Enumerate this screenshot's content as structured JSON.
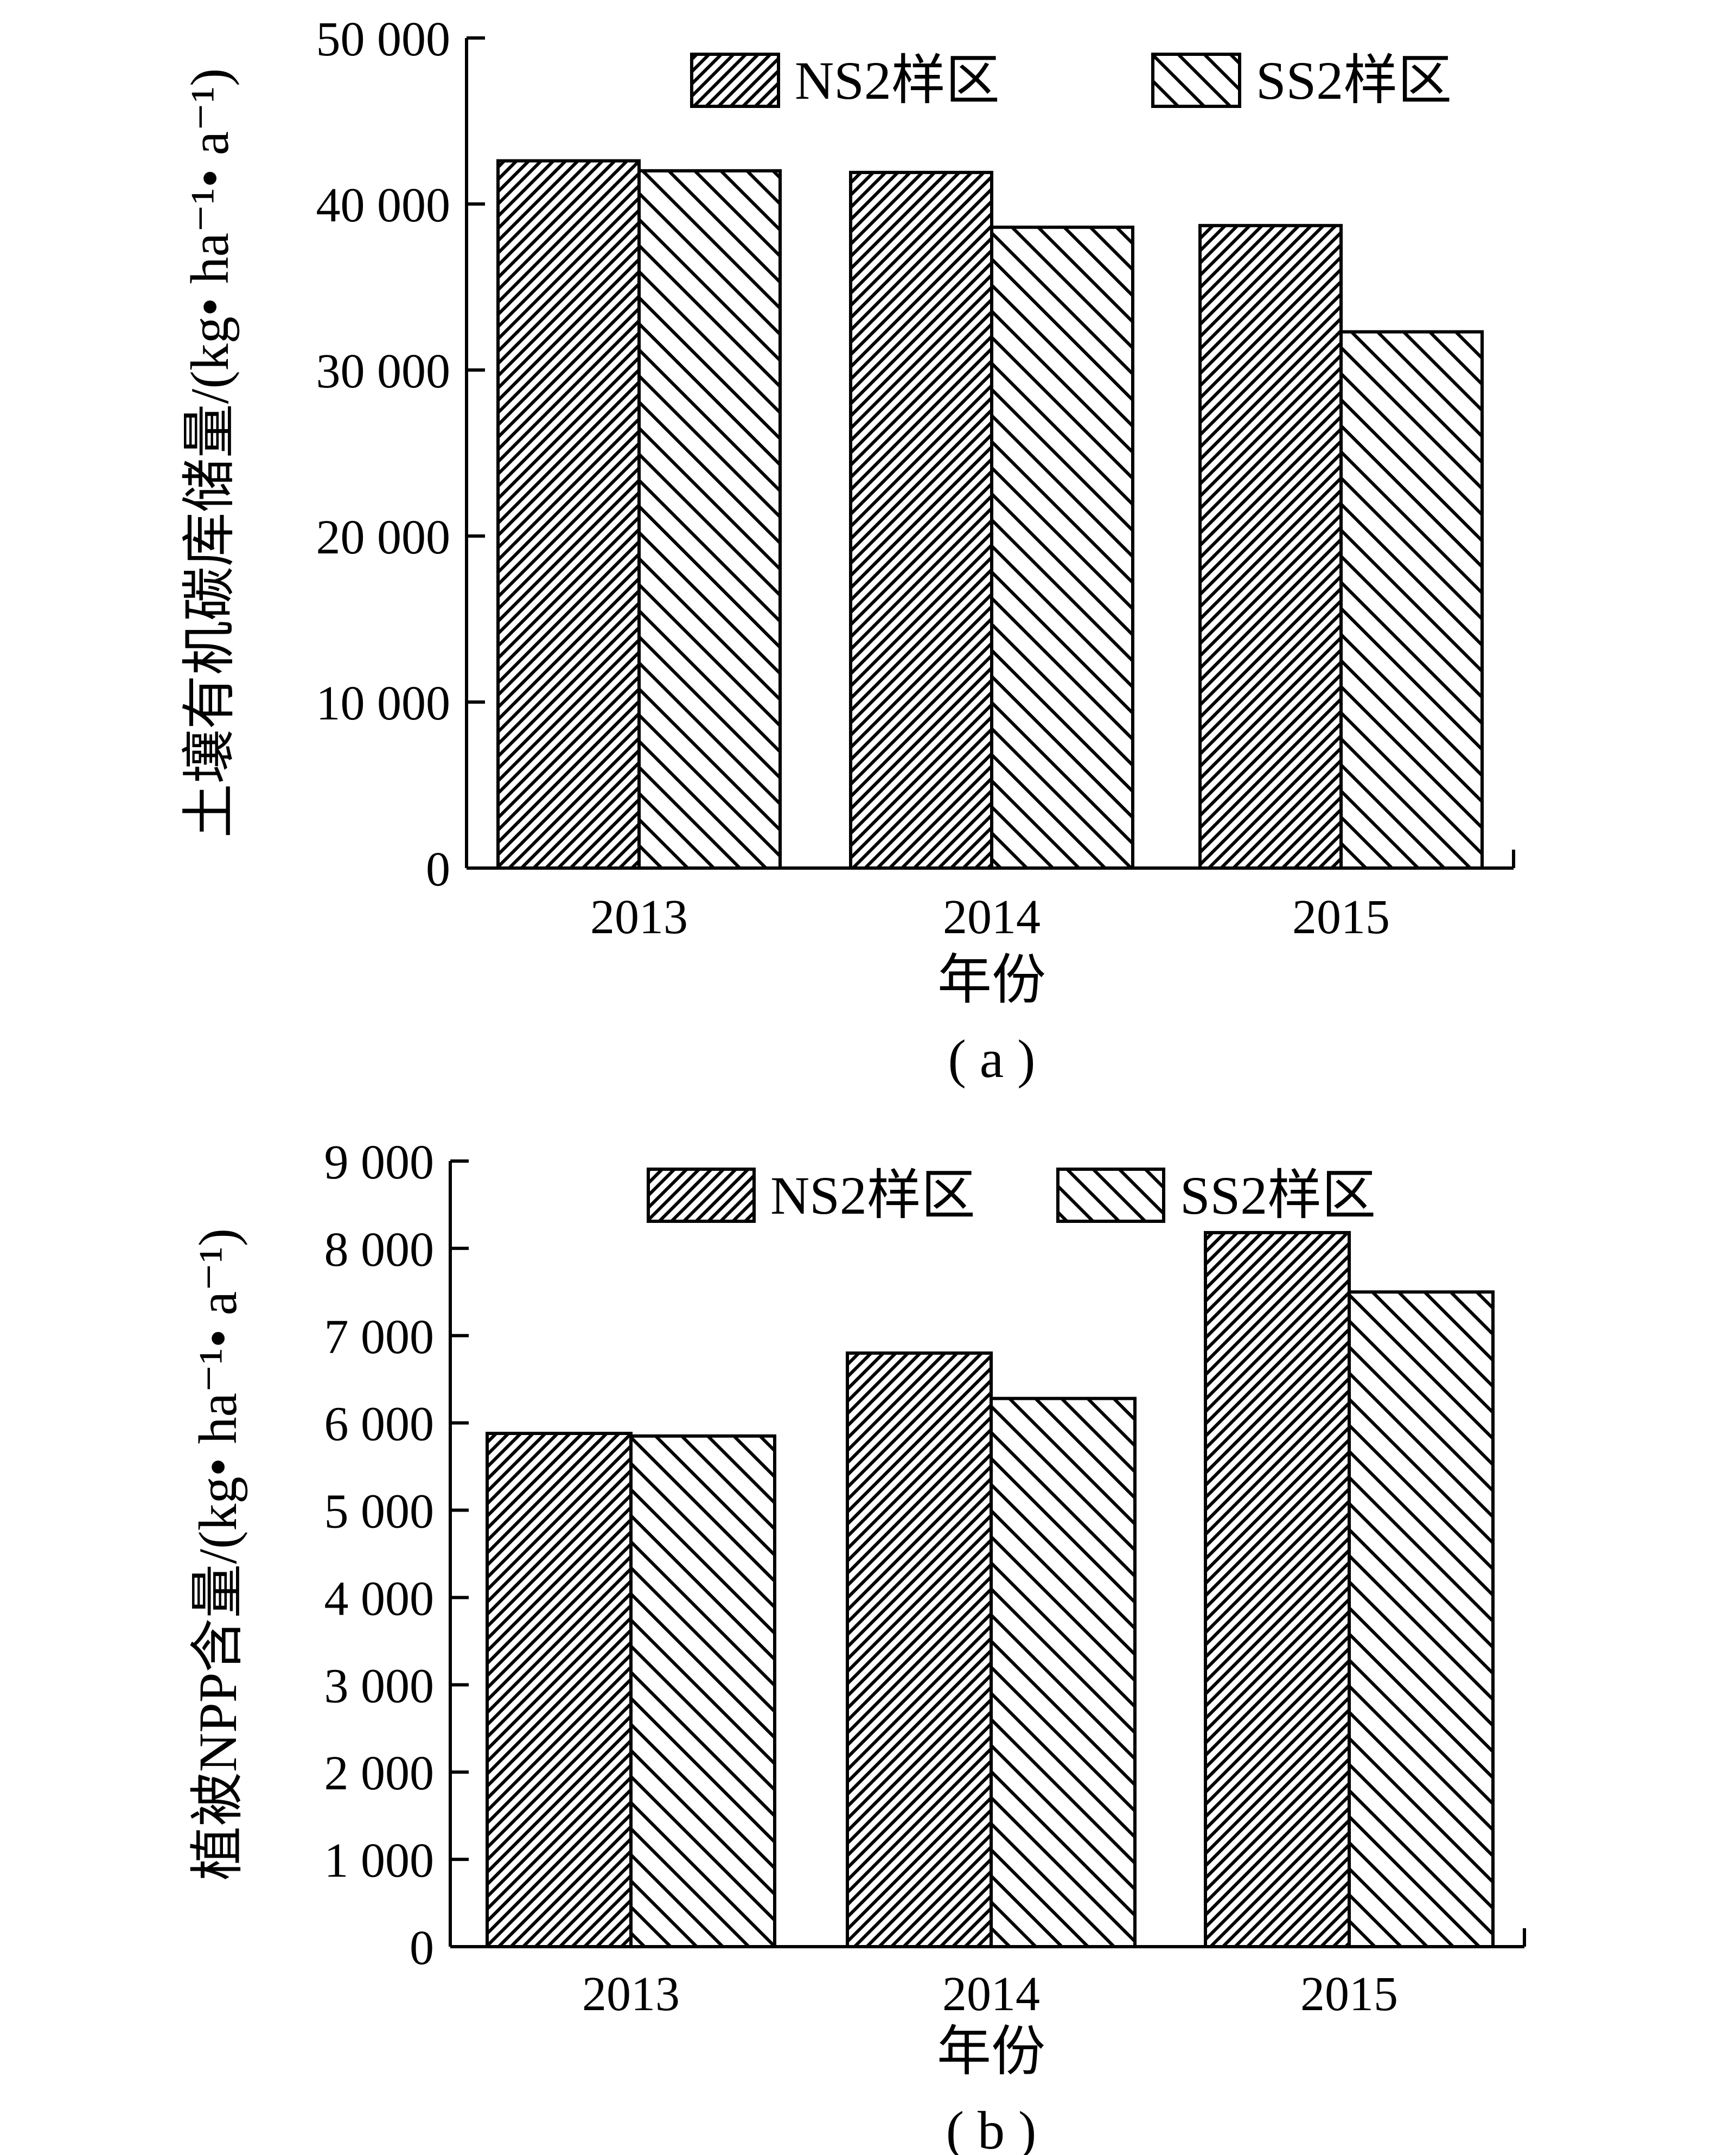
{
  "chart_data": [
    {
      "type": "bar",
      "panel_label": "( a )",
      "categories": [
        "2013",
        "2014",
        "2015"
      ],
      "series": [
        {
          "name": "NS2样区",
          "pattern": "dense-forward-hatch",
          "values": [
            42600,
            41900,
            38700
          ]
        },
        {
          "name": "SS2样区",
          "pattern": "sparse-backward-hatch",
          "values": [
            42000,
            38600,
            32300
          ]
        }
      ],
      "xlabel": "年份",
      "ylabel": "土壤有机碳库储量/(kg• ha⁻¹• a⁻¹)",
      "ylim": [
        0,
        50000
      ],
      "yticks": [
        0,
        10000,
        20000,
        30000,
        40000,
        50000
      ],
      "ytick_labels": [
        "0",
        "10 000",
        "20 000",
        "30 000",
        "40 000",
        "50 000"
      ],
      "legend_position": "top",
      "grid": false
    },
    {
      "type": "bar",
      "panel_label": "( b )",
      "categories": [
        "2013",
        "2014",
        "2015"
      ],
      "series": [
        {
          "name": "NS2样区",
          "pattern": "dense-forward-hatch",
          "values": [
            5880,
            6800,
            8180
          ]
        },
        {
          "name": "SS2样区",
          "pattern": "sparse-backward-hatch",
          "values": [
            5850,
            6280,
            7500
          ]
        }
      ],
      "xlabel": "年份",
      "ylabel": "植被NPP含量/(kg• ha⁻¹• a⁻¹)",
      "ylim": [
        0,
        9000
      ],
      "yticks": [
        0,
        1000,
        2000,
        3000,
        4000,
        5000,
        6000,
        7000,
        8000,
        9000
      ],
      "ytick_labels": [
        "0",
        "1 000",
        "2 000",
        "3 000",
        "4 000",
        "5 000",
        "6 000",
        "7 000",
        "8 000",
        "9 000"
      ],
      "legend_position": "top",
      "grid": false
    }
  ]
}
